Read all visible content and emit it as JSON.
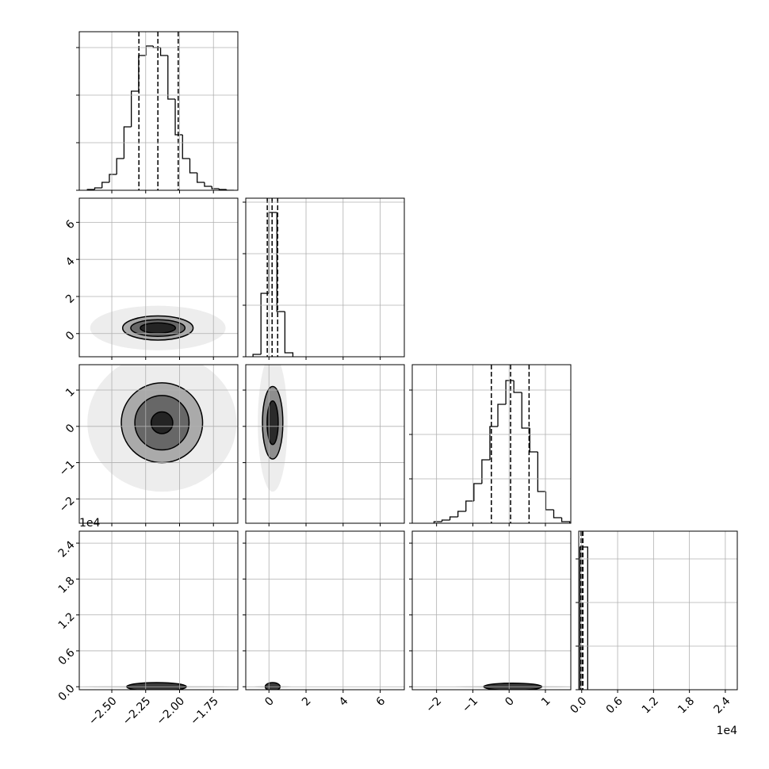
{
  "chart_data": {
    "type": "corner",
    "color": "#000000",
    "grid": true,
    "variables": [
      {
        "lim": [
          -2.74,
          -1.57
        ],
        "ticks": [
          {
            "value": -2.5,
            "label": "−2.50"
          },
          {
            "value": -2.25,
            "label": "−2.25"
          },
          {
            "value": -2.0,
            "label": "−2.00"
          },
          {
            "value": -1.75,
            "label": "−1.75"
          }
        ]
      },
      {
        "lim": [
          -1.25,
          7.3
        ],
        "ticks": [
          0,
          2,
          4,
          6
        ]
      },
      {
        "lim": [
          -2.67,
          1.7
        ],
        "ticks": [
          {
            "value": -2,
            "label": "−2"
          },
          {
            "value": -1,
            "label": "−1"
          },
          0,
          1
        ]
      },
      {
        "lim": [
          -0.05,
          2.6
        ],
        "ticks": [
          {
            "value": 0,
            "label": "0.0"
          },
          {
            "value": 0.6,
            "label": "0.6"
          },
          {
            "value": 1.2,
            "label": "1.2"
          },
          {
            "value": 1.8,
            "label": "1.8"
          },
          {
            "value": 2.4,
            "label": "2.4"
          }
        ],
        "offset": "1e4"
      }
    ],
    "diagonal": [
      {
        "bins": [
          -2.68,
          -2.626,
          -2.572,
          -2.518,
          -2.464,
          -2.41,
          -2.356,
          -2.302,
          -2.248,
          -2.194,
          -2.14,
          -2.086,
          -2.032,
          -1.978,
          -1.924,
          -1.87,
          -1.816,
          -1.762,
          -1.708,
          -1.654,
          -1.6
        ],
        "counts": [
          1,
          3,
          10,
          20,
          40,
          80,
          125,
          170,
          182,
          180,
          170,
          115,
          70,
          40,
          22,
          10,
          5,
          2,
          1,
          0
        ],
        "ylim": [
          0,
          200
        ],
        "yticks": [
          0,
          60,
          120,
          180
        ],
        "quantiles": [
          -2.3,
          -2.16,
          -2.01
        ]
      },
      {
        "bins": [
          -0.86,
          -0.43,
          0,
          0.43,
          0.86,
          1.29
        ],
        "counts": [
          3,
          80,
          182,
          57,
          5
        ],
        "ylim": [
          0,
          200
        ],
        "yticks": [
          0,
          65,
          130,
          195
        ],
        "quantiles": [
          -0.09,
          0.17,
          0.47
        ]
      },
      {
        "bins": [
          -2.07,
          -1.85,
          -1.63,
          -1.41,
          -1.19,
          -0.97,
          -0.75,
          -0.53,
          -0.31,
          -0.09,
          0.13,
          0.35,
          0.57,
          0.79,
          1.01,
          1.23,
          1.45,
          1.67
        ],
        "counts": [
          2,
          4,
          8,
          15,
          28,
          50,
          80,
          122,
          150,
          180,
          165,
          120,
          90,
          40,
          17,
          7,
          2
        ],
        "ylim": [
          0,
          200
        ],
        "yticks": [
          0,
          56,
          112,
          168
        ],
        "quantiles": [
          -0.49,
          0.04,
          0.55
        ]
      },
      {
        "bins": [
          -0.03,
          0.1
        ],
        "counts": [
          180
        ],
        "ylim": [
          0,
          200
        ],
        "yticks": [
          0,
          55,
          110,
          165
        ],
        "quantiles": [
          -0.01,
          0.01,
          0.02
        ]
      }
    ],
    "pairs": [
      {
        "x_var": 0,
        "y_var": 1,
        "contours": [
          {
            "cx": -2.16,
            "cy": 0.3,
            "rx": 0.5,
            "ry": 1.2
          },
          {
            "cx": -2.16,
            "cy": 0.3,
            "rx": 0.26,
            "ry": 0.65
          },
          {
            "cx": -2.16,
            "cy": 0.3,
            "rx": 0.2,
            "ry": 0.45
          },
          {
            "cx": -2.16,
            "cy": 0.3,
            "rx": 0.13,
            "ry": 0.28
          }
        ]
      },
      {
        "x_var": 0,
        "y_var": 2,
        "contours": [
          {
            "cx": -2.13,
            "cy": 0.1,
            "rx": 0.55,
            "ry": 1.9
          },
          {
            "cx": -2.13,
            "cy": 0.1,
            "rx": 0.3,
            "ry": 1.1
          },
          {
            "cx": -2.13,
            "cy": 0.1,
            "rx": 0.2,
            "ry": 0.75
          },
          {
            "cx": -2.13,
            "cy": 0.1,
            "rx": 0.08,
            "ry": 0.3
          }
        ]
      },
      {
        "x_var": 1,
        "y_var": 2,
        "contours": [
          {
            "cx": 0.2,
            "cy": 0.1,
            "rx": 0.8,
            "ry": 1.9
          },
          {
            "cx": 0.2,
            "cy": 0.1,
            "rx": 0.55,
            "ry": 1.0
          },
          {
            "cx": 0.2,
            "cy": 0.1,
            "rx": 0.3,
            "ry": 0.6
          }
        ]
      },
      {
        "x_var": 0,
        "y_var": 3,
        "contours": [
          {
            "cx": -2.17,
            "cy": 0,
            "rx": 0.55,
            "ry": 0.02
          },
          {
            "cx": -2.17,
            "cy": 0,
            "rx": 0.22,
            "ry": 0.07
          }
        ]
      },
      {
        "x_var": 1,
        "y_var": 3,
        "contours": [
          {
            "cx": 0.2,
            "cy": 0,
            "rx": 1.0,
            "ry": 0.02
          },
          {
            "cx": 0.2,
            "cy": 0,
            "rx": 0.4,
            "ry": 0.07
          }
        ]
      },
      {
        "x_var": 2,
        "y_var": 3,
        "contours": [
          {
            "cx": 0.1,
            "cy": 0,
            "rx": 1.6,
            "ry": 0.02
          },
          {
            "cx": 0.1,
            "cy": 0,
            "rx": 0.8,
            "ry": 0.06
          }
        ]
      }
    ]
  }
}
